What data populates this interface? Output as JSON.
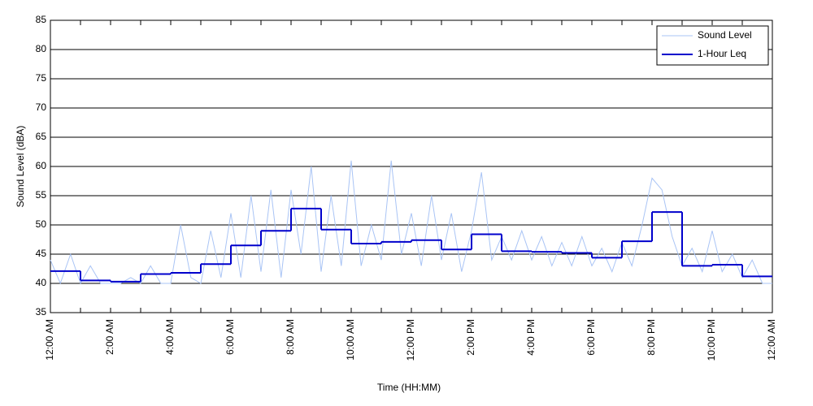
{
  "chart_data": {
    "type": "line",
    "x_label": "Time (HH:MM)",
    "y_label": "Sound Level (dBA)",
    "xlim": [
      0,
      24
    ],
    "ylim": [
      35,
      85
    ],
    "yticks": [
      35,
      40,
      45,
      50,
      55,
      60,
      65,
      70,
      75,
      80,
      85
    ],
    "xticks": [
      {
        "value": 0,
        "label": "12:00 AM"
      },
      {
        "value": 2,
        "label": "2:00 AM"
      },
      {
        "value": 4,
        "label": "4:00 AM"
      },
      {
        "value": 6,
        "label": "6:00 AM"
      },
      {
        "value": 8,
        "label": "8:00 AM"
      },
      {
        "value": 10,
        "label": "10:00 AM"
      },
      {
        "value": 12,
        "label": "12:00 PM"
      },
      {
        "value": 14,
        "label": "2:00 PM"
      },
      {
        "value": 16,
        "label": "4:00 PM"
      },
      {
        "value": 18,
        "label": "6:00 PM"
      },
      {
        "value": 20,
        "label": "8:00 PM"
      },
      {
        "value": 22,
        "label": "10:00 PM"
      },
      {
        "value": 24,
        "label": "12:00 AM"
      }
    ],
    "xminorticks": [
      1,
      3,
      5,
      7,
      9,
      11,
      13,
      15,
      17,
      19,
      21,
      23
    ],
    "grid": true,
    "legend": "upper right",
    "series": [
      {
        "name": "Sound Level",
        "color": "#a9c4f5",
        "style": "line",
        "x": [
          0,
          0.33,
          0.67,
          1,
          1.33,
          1.67,
          2,
          2.33,
          2.67,
          3,
          3.33,
          3.67,
          4,
          4.33,
          4.67,
          5,
          5.33,
          5.67,
          6,
          6.33,
          6.67,
          7,
          7.33,
          7.67,
          8,
          8.33,
          8.67,
          9,
          9.33,
          9.67,
          10,
          10.33,
          10.67,
          11,
          11.33,
          11.67,
          12,
          12.33,
          12.67,
          13,
          13.33,
          13.67,
          14,
          14.33,
          14.67,
          15,
          15.33,
          15.67,
          16,
          16.33,
          16.67,
          17,
          17.33,
          17.67,
          18,
          18.33,
          18.67,
          19,
          19.33,
          19.67,
          20,
          20.33,
          20.67,
          21,
          21.33,
          21.67,
          22,
          22.33,
          22.67,
          23,
          23.33,
          23.67,
          24
        ],
        "values": [
          44,
          40,
          45,
          40,
          43,
          40,
          40,
          40,
          41,
          40,
          43,
          40,
          40,
          50,
          41,
          40,
          49,
          41,
          52,
          41,
          55,
          42,
          56,
          41,
          56,
          45,
          60,
          42,
          55,
          43,
          61,
          43,
          50,
          44,
          61,
          45,
          52,
          43,
          55,
          44,
          52,
          42,
          49,
          59,
          44,
          48,
          44,
          49,
          44,
          48,
          43,
          47,
          43,
          48,
          43,
          46,
          42,
          47,
          43,
          50,
          58,
          56,
          48,
          43,
          46,
          42,
          49,
          42,
          45,
          41,
          44,
          40,
          40
        ]
      },
      {
        "name": "1-Hour Leq",
        "color": "#0000cc",
        "style": "step",
        "x": [
          0,
          1,
          2,
          3,
          4,
          5,
          6,
          7,
          8,
          9,
          10,
          11,
          12,
          13,
          14,
          15,
          16,
          17,
          18,
          19,
          20,
          21,
          22,
          23
        ],
        "values": [
          42.1,
          40.5,
          40.3,
          41.6,
          41.8,
          43.3,
          46.5,
          49.0,
          52.8,
          49.2,
          46.8,
          47.1,
          47.4,
          45.8,
          48.4,
          45.5,
          45.4,
          45.2,
          44.4,
          47.2,
          52.2,
          43.0,
          43.2,
          41.2
        ]
      }
    ]
  }
}
